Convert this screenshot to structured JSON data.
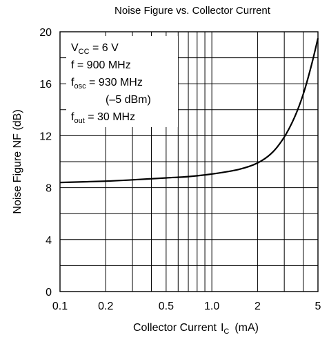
{
  "chart_data": {
    "type": "line",
    "title": "Noise Figure vs. Collector Current",
    "xlabel": "Collector Current",
    "xlabel_symbol": "I",
    "xlabel_sub": "C",
    "xlabel_unit": "(mA)",
    "ylabel": "Noise Figure  NF  (dB)",
    "x_scale": "log",
    "xlim": [
      0.1,
      5
    ],
    "ylim": [
      0,
      20
    ],
    "x_ticks": [
      {
        "value": 0.1,
        "label": "0.1"
      },
      {
        "value": 0.2,
        "label": "0.2"
      },
      {
        "value": 0.5,
        "label": "0.5"
      },
      {
        "value": 1.0,
        "label": "1.0"
      },
      {
        "value": 2,
        "label": "2"
      },
      {
        "value": 5,
        "label": "5"
      }
    ],
    "x_gridlines": [
      0.1,
      0.2,
      0.3,
      0.4,
      0.5,
      0.6,
      0.7,
      0.8,
      0.9,
      1,
      2,
      3,
      4,
      5
    ],
    "y_ticks": [
      {
        "value": 0,
        "label": "0"
      },
      {
        "value": 4,
        "label": "4"
      },
      {
        "value": 8,
        "label": "8"
      },
      {
        "value": 12,
        "label": "12"
      },
      {
        "value": 16,
        "label": "16"
      },
      {
        "value": 20,
        "label": "20"
      }
    ],
    "y_gridlines": [
      0,
      2,
      4,
      6,
      8,
      10,
      12,
      14,
      16,
      18,
      20
    ],
    "grid": true,
    "series": [
      {
        "x": [
          0.1,
          0.2,
          0.3,
          0.5,
          0.7,
          1.0,
          1.5,
          2.0,
          2.5,
          3.0,
          3.5,
          4.0,
          4.5,
          5.0
        ],
        "y": [
          8.4,
          8.5,
          8.6,
          8.75,
          8.85,
          9.05,
          9.4,
          9.9,
          10.7,
          11.9,
          13.4,
          15.2,
          17.3,
          19.5
        ]
      }
    ],
    "conditions": [
      {
        "main": "V",
        "sub": "CC",
        "rest": " = 6 V"
      },
      {
        "main": "f = 900 MHz",
        "sub": "",
        "rest": ""
      },
      {
        "main": "f",
        "sub": "osc",
        "rest": " = 930 MHz"
      },
      {
        "main": "(–5 dBm)",
        "sub": "",
        "rest": ""
      },
      {
        "main": "f",
        "sub": "out",
        "rest": " = 30 MHz"
      }
    ]
  }
}
